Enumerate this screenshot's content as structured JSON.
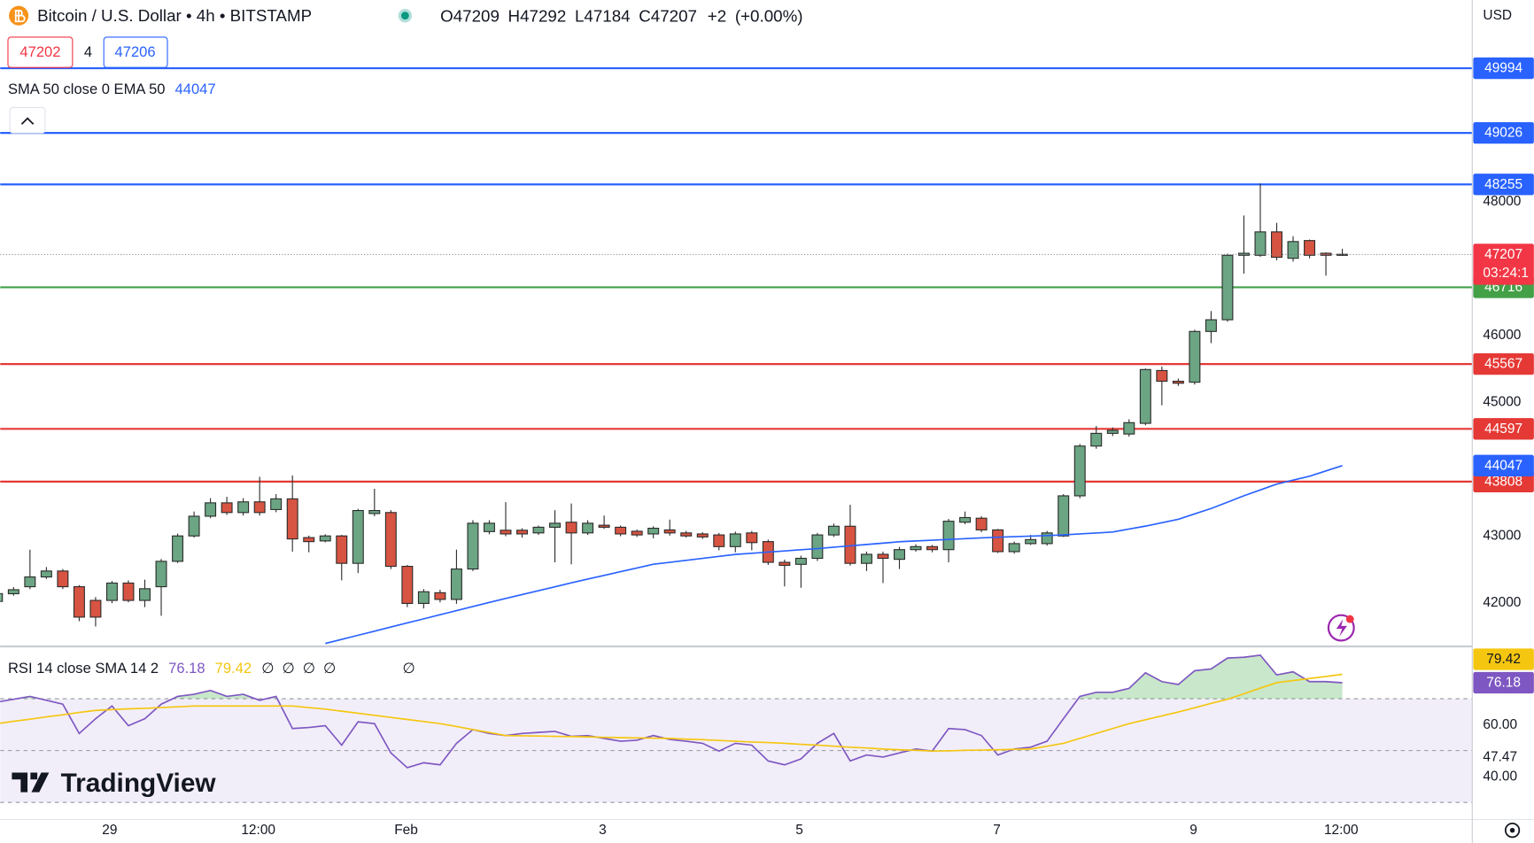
{
  "header": {
    "title": "Bitcoin / U.S. Dollar • 4h • BITSTAMP",
    "ohlc_prefixes": [
      "O",
      "H",
      "L",
      "C"
    ],
    "change": {
      "value": 2,
      "label": "+2"
    },
    "change_pct": {
      "value": 0,
      "label": "(+0.00%)"
    },
    "bid": 47202,
    "spread": 4,
    "ask": 47206
  },
  "chart_data": [
    {
      "type": "candlestick",
      "currency": "USD",
      "countdown": "03:24:1",
      "up_color": "#6ba583",
      "down_color": "#d75442",
      "grid": false,
      "xlim": [
        0.18,
        89.92
      ],
      "ylim": [
        41356,
        51015
      ],
      "yticks": [
        42000,
        43000,
        45000,
        46000,
        48000
      ],
      "xticks": [
        {
          "value": 6.86,
          "label": "29"
        },
        {
          "value": 15.92,
          "label": "12:00"
        },
        {
          "value": 24.93,
          "label": "Feb"
        },
        {
          "value": 36.91,
          "label": "3"
        },
        {
          "value": 48.9,
          "label": "5"
        },
        {
          "value": 60.94,
          "label": "7"
        },
        {
          "value": 72.93,
          "label": "9"
        },
        {
          "value": 81.93,
          "label": "12:00"
        }
      ],
      "candles": [
        [
          42015,
          42205,
          41942,
          42132
        ],
        [
          42130,
          42230,
          42100,
          42190
        ],
        [
          42235,
          42790,
          42200,
          42381
        ],
        [
          42381,
          42530,
          42350,
          42470
        ],
        [
          42470,
          42500,
          42200,
          42235
        ],
        [
          42235,
          42260,
          41720,
          41780
        ],
        [
          42030,
          42080,
          41640,
          41780
        ],
        [
          42030,
          42320,
          41990,
          42290
        ],
        [
          42290,
          42330,
          42000,
          42030
        ],
        [
          42030,
          42340,
          41930,
          42205
        ],
        [
          42235,
          42650,
          41800,
          42615
        ],
        [
          42615,
          43030,
          42590,
          42995
        ],
        [
          42995,
          43360,
          42970,
          43290
        ],
        [
          43290,
          43560,
          43260,
          43490
        ],
        [
          43490,
          43580,
          43310,
          43345
        ],
        [
          43345,
          43560,
          43300,
          43505
        ],
        [
          43505,
          43880,
          43300,
          43345
        ],
        [
          43390,
          43620,
          43350,
          43550
        ],
        [
          43550,
          43900,
          42760,
          42950
        ],
        [
          42970,
          43000,
          42750,
          42910
        ],
        [
          42920,
          43020,
          42900,
          42995
        ],
        [
          42995,
          43010,
          42330,
          42585
        ],
        [
          42585,
          43400,
          42440,
          43375
        ],
        [
          43330,
          43700,
          43290,
          43375
        ],
        [
          43345,
          43380,
          42500,
          42540
        ],
        [
          42540,
          42560,
          41930,
          41985
        ],
        [
          41985,
          42200,
          41910,
          42160
        ],
        [
          42145,
          42190,
          42000,
          42045
        ],
        [
          42045,
          42790,
          41980,
          42500
        ],
        [
          42500,
          43230,
          42470,
          43185
        ],
        [
          43060,
          43230,
          43020,
          43185
        ],
        [
          43080,
          43500,
          42990,
          43025
        ],
        [
          43080,
          43110,
          42970,
          43025
        ],
        [
          43040,
          43150,
          43010,
          43125
        ],
        [
          43125,
          43380,
          42600,
          43185
        ],
        [
          43200,
          43480,
          42570,
          43040
        ],
        [
          43040,
          43230,
          43010,
          43185
        ],
        [
          43155,
          43300,
          43100,
          43125
        ],
        [
          43125,
          43150,
          42990,
          43025
        ],
        [
          43065,
          43090,
          42980,
          43010
        ],
        [
          43025,
          43140,
          42960,
          43110
        ],
        [
          43085,
          43240,
          43000,
          43040
        ],
        [
          43040,
          43070,
          42970,
          42995
        ],
        [
          43025,
          43050,
          42950,
          42980
        ],
        [
          43010,
          43040,
          42780,
          42835
        ],
        [
          42835,
          43060,
          42750,
          43025
        ],
        [
          43040,
          43070,
          42780,
          42895
        ],
        [
          42910,
          42940,
          42560,
          42600
        ],
        [
          42600,
          42640,
          42240,
          42555
        ],
        [
          42570,
          42700,
          42220,
          42660
        ],
        [
          42660,
          43040,
          42620,
          43010
        ],
        [
          43010,
          43180,
          42980,
          43140
        ],
        [
          43140,
          43460,
          42550,
          42585
        ],
        [
          42585,
          42760,
          42470,
          42720
        ],
        [
          42720,
          42760,
          42290,
          42660
        ],
        [
          42645,
          42830,
          42500,
          42790
        ],
        [
          42790,
          42870,
          42760,
          42835
        ],
        [
          42835,
          42860,
          42750,
          42790
        ],
        [
          42790,
          43250,
          42600,
          43215
        ],
        [
          43200,
          43360,
          43170,
          43270
        ],
        [
          43260,
          43290,
          43050,
          43085
        ],
        [
          43085,
          43100,
          42740,
          42760
        ],
        [
          42760,
          42910,
          42730,
          42880
        ],
        [
          42880,
          43010,
          42860,
          42940
        ],
        [
          42880,
          43070,
          42850,
          43040
        ],
        [
          42995,
          43620,
          42980,
          43595
        ],
        [
          43595,
          44370,
          43560,
          44340
        ],
        [
          44340,
          44640,
          44300,
          44530
        ],
        [
          44530,
          44620,
          44490,
          44575
        ],
        [
          44520,
          44740,
          44480,
          44690
        ],
        [
          44680,
          45500,
          44650,
          45485
        ],
        [
          45470,
          45530,
          44950,
          45310
        ],
        [
          45310,
          45350,
          45240,
          45280
        ],
        [
          45295,
          46080,
          45260,
          46055
        ],
        [
          46055,
          46360,
          45880,
          46230
        ],
        [
          46230,
          47220,
          46200,
          47195
        ],
        [
          47195,
          47790,
          46920,
          47225
        ],
        [
          47195,
          48270,
          47170,
          47545
        ],
        [
          47545,
          47680,
          47120,
          47165
        ],
        [
          47150,
          47480,
          47100,
          47400
        ],
        [
          47415,
          47430,
          47150,
          47195
        ],
        [
          47225,
          47240,
          46890,
          47195
        ],
        [
          47209,
          47292,
          47184,
          47207
        ]
      ],
      "series": [
        {
          "name": "SMA 50 close 0 EMA 50",
          "color": "#2962ff",
          "values": [
            null,
            null,
            null,
            null,
            null,
            null,
            null,
            null,
            null,
            null,
            null,
            null,
            null,
            null,
            null,
            null,
            null,
            null,
            null,
            null,
            41386,
            41447,
            41509,
            41570,
            41632,
            41693,
            41754,
            41816,
            41877,
            41939,
            42000,
            42059,
            42117,
            42176,
            42234,
            42293,
            42349,
            42404,
            42460,
            42515,
            42571,
            42600,
            42630,
            42659,
            42689,
            42718,
            42735,
            42753,
            42770,
            42788,
            42805,
            42826,
            42846,
            42867,
            42887,
            42908,
            42920,
            42931,
            42943,
            42954,
            42966,
            42975,
            42984,
            42992,
            43001,
            43010,
            43025,
            43039,
            43054,
            43098,
            43142,
            43193,
            43244,
            43325,
            43405,
            43500,
            43596,
            43683,
            43771,
            43830,
            43888,
            43968,
            44047
          ]
        }
      ],
      "levels": [
        {
          "value": 49994,
          "color": "#2962ff"
        },
        {
          "value": 49026,
          "color": "#2962ff"
        },
        {
          "value": 48255,
          "color": "#2962ff"
        },
        {
          "value": 46716,
          "color": "#43a047"
        },
        {
          "value": 45567,
          "color": "#e53935"
        },
        {
          "value": 44597,
          "color": "#e53935"
        },
        {
          "value": 43808,
          "color": "#e53935"
        }
      ]
    },
    {
      "type": "line",
      "title": "RSI 14 close SMA 14 2",
      "placeholders": [
        "∅",
        "∅",
        "∅",
        "∅",
        "∅"
      ],
      "ylim": [
        23.4,
        89.8
      ],
      "yticks": [
        {
          "value": 60,
          "label": "60.00"
        },
        {
          "value": 47.47,
          "label": "47.47"
        },
        {
          "value": 40,
          "label": "40.00"
        }
      ],
      "bands": [
        70,
        50,
        30
      ],
      "series": [
        {
          "color": "#7e57c2",
          "values": [
            68.7,
            69.8,
            70.9,
            69.4,
            67.9,
            56.6,
            62.3,
            67.2,
            59.6,
            62.3,
            67.9,
            70.9,
            71.7,
            73.2,
            70.9,
            71.7,
            69.4,
            70.9,
            58.5,
            58.9,
            59.6,
            52.1,
            61.1,
            60.4,
            49.1,
            43.4,
            45.3,
            44.5,
            52.8,
            58.1,
            56.6,
            55.8,
            56.6,
            57.0,
            57.4,
            55.5,
            55.8,
            54.7,
            53.6,
            54.0,
            55.8,
            54.3,
            53.6,
            52.8,
            49.8,
            52.8,
            52.1,
            46.0,
            44.5,
            46.8,
            52.8,
            56.6,
            46.0,
            48.3,
            47.5,
            49.1,
            50.6,
            49.8,
            58.5,
            58.1,
            55.8,
            48.3,
            50.6,
            51.3,
            53.6,
            62.3,
            70.9,
            72.5,
            72.5,
            74.0,
            80.0,
            76.6,
            75.5,
            80.8,
            81.5,
            85.7,
            86.0,
            86.8,
            79.2,
            80.4,
            76.6,
            76.6,
            76.18
          ]
        },
        {
          "color": "#f5c60f",
          "values": [
            60.4,
            61.3,
            62.1,
            63.0,
            63.8,
            64.7,
            65.5,
            65.8,
            66.1,
            66.3,
            66.6,
            66.9,
            67.2,
            67.2,
            67.2,
            67.2,
            67.2,
            67.2,
            67.2,
            66.6,
            66.0,
            65.2,
            64.4,
            63.6,
            62.8,
            62.0,
            61.2,
            60.4,
            59.3,
            58.1,
            57.0,
            55.8,
            55.7,
            55.6,
            55.5,
            55.4,
            55.3,
            55.1,
            55.0,
            54.9,
            54.8,
            54.7,
            54.4,
            54.2,
            53.9,
            53.6,
            53.3,
            53.1,
            52.8,
            52.4,
            52.1,
            51.7,
            51.3,
            51.0,
            50.6,
            50.3,
            50.1,
            49.8,
            49.9,
            50.1,
            50.2,
            50.3,
            50.5,
            50.6,
            51.7,
            52.8,
            54.7,
            56.6,
            58.5,
            60.4,
            61.9,
            63.4,
            64.9,
            66.5,
            68.2,
            69.8,
            71.9,
            74.1,
            76.2,
            77.0,
            77.8,
            78.6,
            79.42
          ]
        }
      ]
    }
  ],
  "footer": {
    "logo": "TradingView"
  }
}
